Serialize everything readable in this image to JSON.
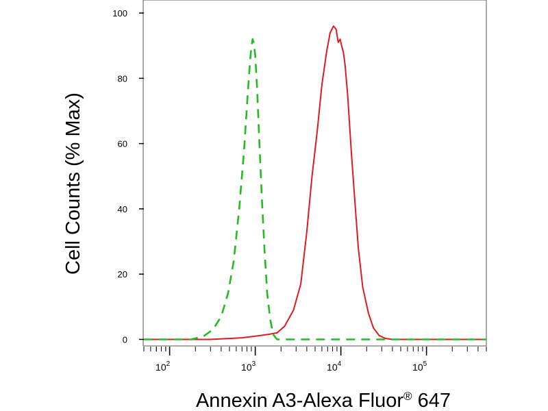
{
  "chart_data": {
    "type": "line",
    "xlabel": "Annexin A3-Alexa Fluor",
    "xlabel_sup": "®",
    "xlabel_suffix": " 647",
    "ylabel": "Cell Counts (% Max)",
    "x_scale": "log",
    "xlim": [
      50,
      500000
    ],
    "ylim": [
      -2,
      104
    ],
    "y_ticks": [
      0,
      20,
      40,
      60,
      80,
      100
    ],
    "x_ticks": [
      {
        "value": 100,
        "base": "10",
        "exp": "2"
      },
      {
        "value": 1000,
        "base": "10",
        "exp": "3"
      },
      {
        "value": 10000,
        "base": "10",
        "exp": "4"
      },
      {
        "value": 100000,
        "base": "10",
        "exp": "5"
      }
    ],
    "grid": false,
    "series": [
      {
        "color": "#e0191e",
        "style": "solid",
        "x": [
          50,
          300,
          700,
          1000,
          1400,
          1800,
          2200,
          2800,
          3400,
          4000,
          4600,
          5300,
          6000,
          6800,
          7500,
          8200,
          8800,
          9300,
          9800,
          10200,
          10700,
          11200,
          12000,
          13200,
          14500,
          16000,
          18000,
          21000,
          24000,
          28000,
          33000,
          40000,
          500000
        ],
        "values": [
          0,
          0,
          0.5,
          1,
          1.5,
          2,
          4,
          9,
          17,
          33,
          50,
          64,
          78,
          88,
          94,
          96,
          95,
          91,
          92,
          90,
          88,
          84,
          75,
          58,
          43,
          28,
          16,
          8,
          3.5,
          1.2,
          0.3,
          0,
          0
        ]
      },
      {
        "color": "#22bb22",
        "style": "dashed",
        "x": [
          50,
          180,
          250,
          320,
          400,
          480,
          560,
          650,
          740,
          820,
          880,
          930,
          960,
          1000,
          1050,
          1110,
          1190,
          1280,
          1380,
          1500,
          1620,
          1800,
          500000
        ],
        "values": [
          0,
          0,
          1,
          3,
          7,
          14,
          24,
          40,
          58,
          76,
          87,
          92,
          91,
          87,
          77,
          62,
          44,
          28,
          14,
          6,
          1.5,
          0,
          0
        ]
      }
    ]
  }
}
